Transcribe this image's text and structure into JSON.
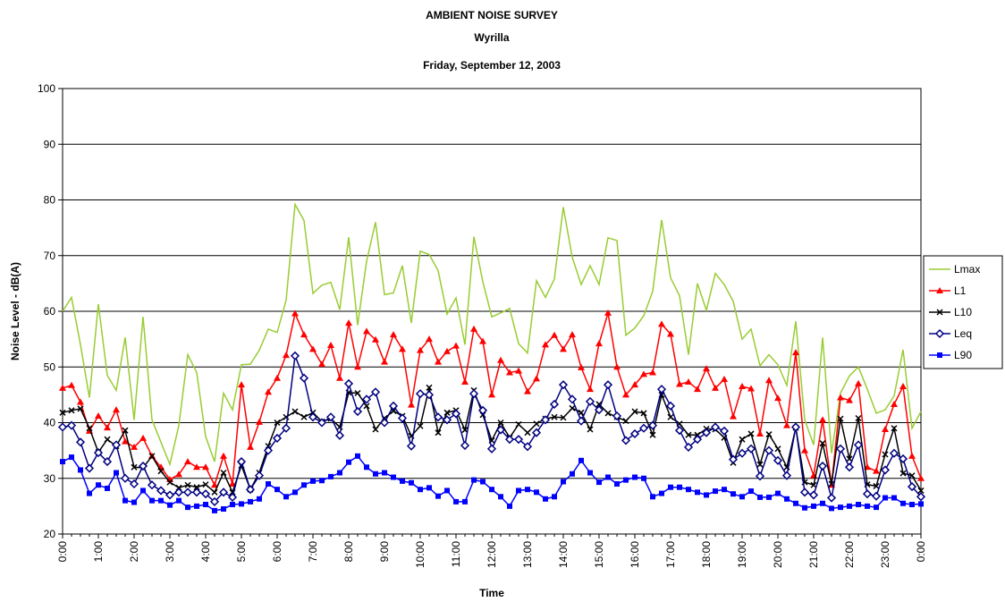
{
  "chart_data": {
    "type": "line",
    "title": "AMBIENT NOISE SURVEY",
    "subtitle": "Wyrilla",
    "date": "Friday, September 12, 2003",
    "x_label": "Time",
    "y_label": "Noise Level - dB(A)",
    "ylim": [
      20,
      100
    ],
    "yticks": [
      20,
      30,
      40,
      50,
      60,
      70,
      80,
      90,
      100
    ],
    "grid": true,
    "legend": "right",
    "categories": [
      "0:00",
      null,
      null,
      null,
      "1:00",
      null,
      null,
      null,
      "2:00",
      null,
      null,
      null,
      "3:00",
      null,
      null,
      null,
      "4:00",
      null,
      null,
      null,
      "5:00",
      null,
      null,
      null,
      "6:00",
      null,
      null,
      null,
      "7:00",
      null,
      null,
      null,
      "8:00",
      null,
      null,
      null,
      "9:00",
      null,
      null,
      null,
      "10:00",
      null,
      null,
      null,
      "11:00",
      null,
      null,
      null,
      "12:00",
      null,
      null,
      null,
      "13:00",
      null,
      null,
      null,
      "14:00",
      null,
      null,
      null,
      "15:00",
      null,
      null,
      null,
      "16:00",
      null,
      null,
      null,
      "17:00",
      null,
      null,
      null,
      "18:00",
      null,
      null,
      null,
      "19:00",
      null,
      null,
      null,
      "20:00",
      null,
      null,
      null,
      "21:00",
      null,
      null,
      null,
      "22:00",
      null,
      null,
      null,
      "23:00",
      null,
      null,
      null,
      "0:00"
    ],
    "series": [
      {
        "name": "Lmax",
        "color": "#99cc33",
        "marker": "none",
        "values": [
          60,
          62.5,
          54,
          44.5,
          61.3,
          48.5,
          45.8,
          55.3,
          40.5,
          59,
          40.5,
          36.5,
          32.5,
          39.5,
          52.2,
          49,
          37.5,
          33,
          45.3,
          42.3,
          50.4,
          50.5,
          53,
          56.8,
          56.2,
          62,
          79.2,
          76.3,
          63.2,
          64.7,
          65.2,
          60.3,
          73.3,
          57.5,
          69,
          76,
          63,
          63.3,
          68.2,
          57.9,
          70.8,
          70.2,
          67.3,
          59.5,
          62.4,
          54,
          73.4,
          65.3,
          59,
          59.7,
          60.5,
          54.2,
          52.5,
          65.5,
          62.5,
          65.8,
          78.7,
          69.7,
          64.8,
          68.2,
          64.8,
          73.2,
          72.7,
          55.7,
          57,
          59.2,
          63.6,
          76.4,
          66,
          62.8,
          52.2,
          65,
          60.2,
          66.8,
          64.8,
          61.8,
          55,
          56.8,
          50.2,
          52.2,
          50.4,
          46.7,
          58.2,
          40.5,
          36,
          55.3,
          34.5,
          45.3,
          48.4,
          50,
          46,
          41.7,
          42.3,
          44.8,
          53.1,
          39,
          42
        ]
      },
      {
        "name": "L1",
        "color": "#ff0000",
        "marker": "triangle",
        "values": [
          46.2,
          46.7,
          43.7,
          38.5,
          41.2,
          39.1,
          42.3,
          36.6,
          35.6,
          37.2,
          34,
          32,
          29.8,
          30.7,
          33,
          32,
          32,
          28.8,
          34,
          29,
          46.8,
          35.6,
          40.1,
          45.5,
          48,
          52.1,
          59.6,
          55.8,
          53.2,
          50.5,
          53.9,
          48,
          57.9,
          50,
          56.4,
          54.9,
          50.9,
          55.8,
          53.2,
          43.2,
          53,
          55,
          50.9,
          52.8,
          53.8,
          47.3,
          56.8,
          54.6,
          45,
          51.2,
          49,
          49.3,
          45.6,
          47.9,
          54,
          55.7,
          53.2,
          55.8,
          49.9,
          46,
          54.2,
          59.7,
          50,
          45,
          46.8,
          48.7,
          49,
          57.7,
          55.9,
          46.9,
          47.3,
          46,
          49.7,
          46.2,
          47.8,
          41.1,
          46.5,
          46.1,
          38,
          47.6,
          44.4,
          39.5,
          52.6,
          35,
          30.5,
          40.5,
          28.8,
          44.5,
          44,
          47,
          32,
          31.3,
          38.8,
          43.3,
          46.5,
          34,
          30
        ]
      },
      {
        "name": "L10",
        "color": "#000000",
        "marker": "x",
        "values": [
          41.8,
          42.2,
          42.5,
          39,
          34.7,
          37,
          35.8,
          38.6,
          32,
          31.9,
          34,
          31.3,
          29.3,
          28.3,
          28.8,
          28.4,
          28.9,
          27.5,
          31,
          27.5,
          32.3,
          28,
          31,
          35.8,
          40,
          41,
          42,
          41,
          41.8,
          40.2,
          40.7,
          39.2,
          45.4,
          45.3,
          43,
          38.8,
          40.8,
          42.1,
          41.2,
          37.6,
          39.4,
          46.3,
          38.2,
          41.8,
          42.2,
          38.7,
          45.8,
          41.4,
          36.8,
          40,
          37.3,
          39.7,
          38.2,
          39.8,
          40.7,
          41,
          40.9,
          42.6,
          41.8,
          38.8,
          43.3,
          41.7,
          41,
          40.3,
          42,
          41.7,
          37.8,
          45,
          41,
          39.8,
          37.8,
          37.8,
          38.9,
          38.8,
          37.3,
          32.8,
          37,
          38,
          32.5,
          37.9,
          35.3,
          32,
          39.1,
          29.3,
          28.8,
          36.3,
          29,
          40.7,
          33.5,
          40.8,
          28.9,
          28.6,
          34.3,
          39,
          30.9,
          30.5,
          27.8
        ]
      },
      {
        "name": "Leq",
        "color": "#000080",
        "marker": "diamond",
        "values": [
          39.2,
          39.5,
          36.5,
          31.8,
          34.6,
          33,
          36,
          30,
          29,
          32.2,
          28.8,
          27.8,
          27,
          27.5,
          27.5,
          27.5,
          27.2,
          25.8,
          27.5,
          26.6,
          33,
          28,
          30.5,
          35,
          37.2,
          39,
          52,
          48,
          41,
          40,
          41,
          37.7,
          47,
          42,
          44.2,
          45.5,
          40,
          43,
          40.8,
          35.8,
          45.2,
          45,
          41,
          40.5,
          41.6,
          35.9,
          45.2,
          42.2,
          35.3,
          38.7,
          37,
          37,
          35.7,
          38.2,
          40.5,
          43.3,
          46.8,
          44.2,
          40.3,
          43.8,
          42.3,
          46.8,
          41.2,
          36.8,
          38,
          39,
          39.5,
          46,
          43,
          38.6,
          35.6,
          37,
          38.2,
          39.2,
          38.5,
          33.4,
          34.5,
          35.3,
          30.4,
          35,
          33.2,
          30.5,
          39.2,
          27.5,
          27,
          32.2,
          26.5,
          35.3,
          32,
          36,
          27.2,
          26.8,
          31.5,
          34.5,
          33.5,
          28.5,
          26.7
        ]
      },
      {
        "name": "L90",
        "color": "#0000ff",
        "marker": "square",
        "values": [
          33,
          33.8,
          31.5,
          27.3,
          28.8,
          28.2,
          31,
          26,
          25.7,
          27.8,
          26,
          26,
          25.2,
          26,
          24.8,
          25,
          25.3,
          24.2,
          24.5,
          25.3,
          25.4,
          25.8,
          26.3,
          29,
          28,
          26.7,
          27.5,
          28.8,
          29.5,
          29.6,
          30.3,
          31,
          32.9,
          34,
          32,
          30.8,
          31,
          30.2,
          29.5,
          29.2,
          28,
          28.3,
          26.8,
          27.8,
          25.8,
          25.8,
          29.7,
          29.4,
          28,
          26.7,
          25,
          27.8,
          28,
          27.5,
          26.3,
          26.7,
          29.4,
          30.8,
          33.2,
          31,
          29.3,
          30.2,
          29,
          29.7,
          30.2,
          30,
          26.7,
          27.3,
          28.4,
          28.4,
          28,
          27.5,
          27,
          27.7,
          28,
          27.2,
          26.7,
          27.7,
          26.6,
          26.6,
          27.3,
          26.3,
          25.5,
          24.7,
          25,
          25.5,
          24.6,
          24.8,
          25,
          25.3,
          25,
          24.8,
          26.5,
          26.5,
          25.5,
          25.3,
          25.4
        ]
      }
    ]
  }
}
